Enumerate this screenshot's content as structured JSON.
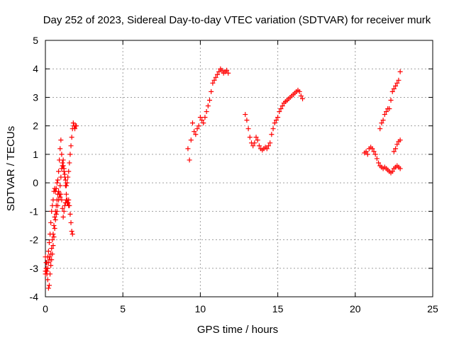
{
  "chart_data": {
    "type": "scatter",
    "title": "Day 252 of 2023, Sidereal Day-to-day VTEC variation (SDTVAR) for receiver murk",
    "xlabel": "GPS time / hours",
    "ylabel": "SDTVAR / TECUs",
    "xlim": [
      0,
      25
    ],
    "ylim": [
      -4,
      5
    ],
    "x_ticks": [
      "0",
      "5",
      "10",
      "15",
      "20",
      "25"
    ],
    "y_ticks": [
      "-4",
      "-3",
      "-2",
      "-1",
      "0",
      "1",
      "2",
      "3",
      "4",
      "5"
    ],
    "grid": true,
    "marker": "plus",
    "color": "#ff0000",
    "series": [
      {
        "x": [
          0.0,
          0.05,
          0.1,
          0.15,
          0.2,
          0.25,
          0.3,
          0.35,
          0.4,
          0.45,
          0.5,
          0.55,
          0.6,
          0.65,
          0.7,
          0.75,
          0.8,
          0.85,
          0.9,
          0.95,
          1.0,
          1.05,
          1.1,
          1.15,
          1.2,
          1.25,
          1.3,
          1.35,
          1.4,
          1.45,
          1.5,
          1.55,
          1.6,
          1.65,
          1.7,
          1.75,
          1.8,
          1.85,
          1.9,
          1.95,
          2.0,
          2.05,
          2.1,
          2.15,
          2.2,
          2.25,
          2.3,
          2.35,
          2.4,
          2.45,
          2.5,
          2.55,
          2.6,
          2.65,
          2.7,
          2.75,
          2.8,
          2.85,
          2.9,
          2.95,
          3.0
        ],
        "y": [
          -3.1,
          -3.0,
          -2.8,
          -2.6,
          -2.4,
          -2.1,
          -1.8,
          -1.4,
          -1.0,
          -0.8,
          -0.6,
          -0.3,
          -0.2,
          -0.3,
          -0.2,
          0.0,
          0.1,
          0.4,
          0.8,
          1.2,
          1.5,
          1.0,
          0.6,
          0.8,
          0.5,
          0.3,
          0.1,
          -0.1,
          0.0,
          0.2,
          0.4,
          0.7,
          1.0,
          1.3,
          1.6,
          1.9,
          2.1,
          2.0,
          1.9,
          2.0,
          2.0,
          null,
          null,
          null,
          null,
          null,
          null,
          null,
          null,
          null,
          null,
          null,
          null,
          null,
          null,
          null,
          null,
          null,
          null,
          null,
          null
        ]
      },
      {
        "x": [
          0.0,
          0.05,
          0.1,
          0.15,
          0.2,
          0.25,
          0.3,
          0.35,
          0.4,
          0.45,
          0.5,
          0.55,
          0.6,
          0.65,
          0.7,
          0.75,
          0.8,
          0.85,
          0.9,
          0.95,
          1.0,
          1.05,
          1.1,
          1.15,
          1.2,
          1.25,
          1.3,
          1.35,
          1.4,
          1.45,
          1.5,
          1.55,
          1.6,
          1.65,
          1.7,
          1.75,
          1.8,
          1.85,
          1.9,
          1.95,
          2.0,
          2.05,
          2.1,
          2.15,
          2.2,
          2.25,
          2.3,
          2.35,
          2.4,
          2.45,
          2.5
        ],
        "y": [
          -2.6,
          -2.8,
          -3.1,
          -3.4,
          -3.7,
          -3.6,
          -3.2,
          -2.9,
          -2.7,
          -2.5,
          -2.2,
          -1.9,
          -1.6,
          -1.3,
          -1.1,
          -1.0,
          -0.8,
          -0.6,
          -0.4,
          -0.1,
          0.2,
          0.5,
          0.7,
          0.6,
          0.4,
          0.2,
          -0.1,
          -0.4,
          -0.6,
          -0.7,
          -0.6,
          -0.8,
          -1.1,
          -1.4,
          -1.7,
          -1.8,
          null,
          null,
          null,
          null,
          null,
          null,
          null,
          null,
          null,
          null,
          null,
          null,
          null,
          null,
          null
        ]
      },
      {
        "x": [
          0.0,
          0.05,
          0.1,
          0.15,
          0.2,
          0.25,
          0.3,
          0.35,
          0.4,
          0.45,
          0.5,
          0.55,
          0.6,
          0.65,
          0.7,
          0.75,
          0.8,
          0.85,
          0.9,
          0.95,
          1.0,
          1.05,
          1.1,
          1.15,
          1.2,
          1.25,
          1.3,
          1.35,
          1.4,
          1.45,
          1.5
        ],
        "y": [
          -3.2,
          -3.1,
          -3.2,
          -3.0,
          -2.8,
          -2.6,
          -2.7,
          -2.5,
          -2.3,
          -2.0,
          -1.8,
          -1.5,
          -1.2,
          -1.0,
          -0.8,
          -0.6,
          -0.4,
          -0.3,
          -0.4,
          -0.5,
          -0.4,
          -0.6,
          -0.9,
          -1.2,
          -1.0,
          -0.8,
          -0.7,
          -0.6,
          -0.7,
          -0.7,
          -0.8
        ]
      },
      {
        "x": [
          9.2,
          9.3,
          9.4,
          9.5,
          9.6,
          9.7,
          9.8,
          9.9,
          10.0,
          10.1,
          10.2,
          10.3,
          10.4,
          10.5,
          10.6,
          10.7,
          10.8,
          10.9,
          11.0,
          11.1,
          11.2,
          11.3,
          11.4,
          11.5,
          11.6,
          11.7,
          11.8
        ],
        "y": [
          1.2,
          0.8,
          1.5,
          2.1,
          1.8,
          1.7,
          1.9,
          2.0,
          2.3,
          2.2,
          2.1,
          2.3,
          2.5,
          2.7,
          2.9,
          3.2,
          3.5,
          3.6,
          3.7,
          3.8,
          3.9,
          4.0,
          3.95,
          3.85,
          3.9,
          3.95,
          3.85
        ]
      },
      {
        "x": [
          12.9,
          13.0,
          13.1,
          13.2,
          13.3,
          13.4,
          13.5,
          13.6,
          13.7,
          13.8,
          13.9,
          14.0,
          14.1,
          14.2,
          14.3,
          14.4,
          14.5,
          14.6,
          14.7,
          14.8,
          14.9,
          15.0,
          15.1,
          15.2,
          15.3,
          15.4,
          15.5,
          15.6,
          15.7,
          15.8,
          15.9,
          16.0,
          16.1,
          16.2,
          16.3,
          16.4,
          16.5,
          16.6
        ],
        "y": [
          2.4,
          2.2,
          1.9,
          1.6,
          1.4,
          1.3,
          1.4,
          1.6,
          1.5,
          1.3,
          1.2,
          1.15,
          1.2,
          1.25,
          1.2,
          1.3,
          1.4,
          1.7,
          1.9,
          2.1,
          2.2,
          2.3,
          2.5,
          2.6,
          2.7,
          2.8,
          2.85,
          2.9,
          2.95,
          3.0,
          3.05,
          3.1,
          3.15,
          3.2,
          3.25,
          3.2,
          3.05,
          2.95
        ]
      },
      {
        "x": [
          20.6,
          20.7,
          20.8,
          20.9,
          21.0,
          21.1,
          21.2,
          21.3,
          21.4,
          21.5,
          21.6,
          21.7,
          21.8,
          21.9,
          22.0,
          22.1,
          22.2,
          22.3,
          22.4,
          22.5,
          22.6,
          22.7,
          22.8,
          22.9
        ],
        "y": [
          1.05,
          1.1,
          1.0,
          1.2,
          1.25,
          1.2,
          1.1,
          1.0,
          0.85,
          0.7,
          0.6,
          0.55,
          0.5,
          0.55,
          0.5,
          0.45,
          0.4,
          0.35,
          0.4,
          0.5,
          0.55,
          0.6,
          0.55,
          0.5
        ]
      },
      {
        "x": [
          21.6,
          21.7,
          21.8,
          21.9,
          22.0,
          22.1,
          22.2,
          22.3,
          22.4,
          22.5,
          22.6,
          22.7,
          22.8,
          22.9
        ],
        "y": [
          1.9,
          2.1,
          2.2,
          2.4,
          2.5,
          2.6,
          2.6,
          2.9,
          3.2,
          3.3,
          3.4,
          3.5,
          3.6,
          3.9
        ]
      },
      {
        "x": [
          22.5,
          22.6,
          22.7,
          22.8,
          22.9
        ],
        "y": [
          1.1,
          1.2,
          1.35,
          1.45,
          1.5
        ]
      }
    ]
  }
}
